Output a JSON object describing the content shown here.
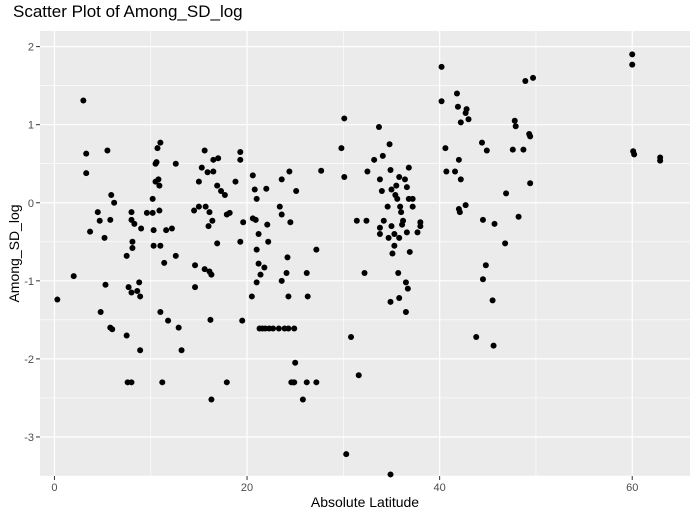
{
  "chart_data": {
    "type": "scatter",
    "title": "Scatter Plot of Among_SD_log",
    "xlabel": "Absolute Latitude",
    "ylabel": "Among_SD_log",
    "xlim": [
      -1.5,
      66
    ],
    "ylim": [
      -3.5,
      2.2
    ],
    "x_ticks": [
      0,
      20,
      40,
      60
    ],
    "y_ticks": [
      -3,
      -2,
      -1,
      0,
      1,
      2
    ],
    "grid": true,
    "legend": "none",
    "colors": {
      "panel": "#ebebeb",
      "grid": "#ffffff",
      "point": "#000000"
    },
    "points": [
      [
        0.3,
        -1.24
      ],
      [
        2,
        -0.94
      ],
      [
        3,
        1.31
      ],
      [
        3.3,
        0.63
      ],
      [
        3.3,
        0.38
      ],
      [
        3.7,
        -0.37
      ],
      [
        4.5,
        -0.12
      ],
      [
        4.7,
        -0.23
      ],
      [
        4.8,
        -1.4
      ],
      [
        5.2,
        -0.45
      ],
      [
        5.3,
        -1.05
      ],
      [
        5.5,
        0.67
      ],
      [
        5.8,
        -1.6
      ],
      [
        5.8,
        -0.22
      ],
      [
        5.9,
        0.1
      ],
      [
        6,
        -1.62
      ],
      [
        6.2,
        0
      ],
      [
        7.5,
        -0.68
      ],
      [
        7.5,
        -1.7
      ],
      [
        7.6,
        -2.3
      ],
      [
        7.7,
        -1.08
      ],
      [
        8,
        -2.3
      ],
      [
        8,
        -1.15
      ],
      [
        8,
        -0.22
      ],
      [
        8,
        -0.12
      ],
      [
        8.1,
        -0.5
      ],
      [
        8.1,
        -0.58
      ],
      [
        8.3,
        -0.27
      ],
      [
        8.6,
        -1.13
      ],
      [
        8.8,
        -1.02
      ],
      [
        8.9,
        -1.2
      ],
      [
        8.9,
        -1.89
      ],
      [
        9,
        -0.33
      ],
      [
        9.6,
        -0.13
      ],
      [
        10.2,
        -0.13
      ],
      [
        10.2,
        0.05
      ],
      [
        10.3,
        -0.55
      ],
      [
        10.3,
        -0.35
      ],
      [
        10.5,
        0.27
      ],
      [
        10.5,
        0.5
      ],
      [
        10.6,
        0.52
      ],
      [
        10.7,
        0.7
      ],
      [
        10.8,
        0.3
      ],
      [
        10.9,
        0.22
      ],
      [
        10.9,
        -0.1
      ],
      [
        11,
        0.77
      ],
      [
        11,
        -0.55
      ],
      [
        11,
        -1.4
      ],
      [
        11.2,
        -2.3
      ],
      [
        11.4,
        -0.77
      ],
      [
        11.6,
        -0.35
      ],
      [
        11.8,
        -1.51
      ],
      [
        12.2,
        -0.33
      ],
      [
        12.6,
        0.5
      ],
      [
        12.6,
        -0.68
      ],
      [
        12.9,
        -1.6
      ],
      [
        13.2,
        -1.89
      ],
      [
        14.5,
        -0.1
      ],
      [
        14.6,
        -1.08
      ],
      [
        14.6,
        -0.8
      ],
      [
        15,
        0.27
      ],
      [
        15,
        -0.05
      ],
      [
        15.3,
        0.45
      ],
      [
        15.6,
        -0.85
      ],
      [
        15.6,
        0.67
      ],
      [
        15.7,
        -0.05
      ],
      [
        15.9,
        0.39
      ],
      [
        16,
        -0.3
      ],
      [
        16.1,
        -0.88
      ],
      [
        16.1,
        -0.12
      ],
      [
        16.2,
        -1.5
      ],
      [
        16.3,
        -0.92
      ],
      [
        16.3,
        -2.52
      ],
      [
        16.4,
        -0.23
      ],
      [
        16.5,
        0.55
      ],
      [
        16.5,
        0.4
      ],
      [
        16.9,
        0.22
      ],
      [
        16.9,
        -0.52
      ],
      [
        17,
        0.57
      ],
      [
        17.3,
        0.15
      ],
      [
        17.7,
        0.1
      ],
      [
        17.9,
        -2.3
      ],
      [
        17.9,
        -0.15
      ],
      [
        18.2,
        -0.13
      ],
      [
        18.8,
        0.27
      ],
      [
        19.3,
        0.65
      ],
      [
        19.3,
        0.55
      ],
      [
        19.3,
        -0.5
      ],
      [
        19.5,
        -1.51
      ],
      [
        19.6,
        -0.25
      ],
      [
        20.5,
        -1.2
      ],
      [
        20.6,
        0.35
      ],
      [
        20.6,
        -0.2
      ],
      [
        20.8,
        0.17
      ],
      [
        20.9,
        -0.22
      ],
      [
        21,
        -1.02
      ],
      [
        21,
        0.05
      ],
      [
        21,
        -0.6
      ],
      [
        21.2,
        -0.78
      ],
      [
        21.2,
        -0.4
      ],
      [
        21.3,
        -1.61
      ],
      [
        21.4,
        -0.92
      ],
      [
        21.6,
        -1.61
      ],
      [
        21.8,
        -0.83
      ],
      [
        21.9,
        -1.61
      ],
      [
        22,
        0.18
      ],
      [
        22.1,
        -0.28
      ],
      [
        22.2,
        -0.5
      ],
      [
        22.3,
        -1.61
      ],
      [
        22.7,
        -1.61
      ],
      [
        23.3,
        -1.61
      ],
      [
        23.4,
        -0.05
      ],
      [
        23.6,
        -0.15
      ],
      [
        23.6,
        0.3
      ],
      [
        23.6,
        -1.0
      ],
      [
        23.9,
        -1.61
      ],
      [
        24.1,
        -0.9
      ],
      [
        24.2,
        -0.7
      ],
      [
        24.3,
        -1.2
      ],
      [
        24.3,
        -1.61
      ],
      [
        24.4,
        0.4
      ],
      [
        24.5,
        -0.25
      ],
      [
        24.6,
        -2.3
      ],
      [
        24.8,
        -2.3
      ],
      [
        24.9,
        -1.61
      ],
      [
        24.9,
        -2.3
      ],
      [
        25,
        -2.05
      ],
      [
        25.1,
        0.15
      ],
      [
        25.8,
        -2.52
      ],
      [
        26.2,
        -0.9
      ],
      [
        26.2,
        -2.3
      ],
      [
        26.3,
        -1.2
      ],
      [
        27.2,
        -0.6
      ],
      [
        27.2,
        -2.3
      ],
      [
        27.7,
        0.41
      ],
      [
        29.8,
        0.7
      ],
      [
        30.1,
        1.08
      ],
      [
        30.1,
        0.33
      ],
      [
        30.3,
        -3.22
      ],
      [
        30.8,
        -1.72
      ],
      [
        31.4,
        -0.23
      ],
      [
        31.6,
        -2.21
      ],
      [
        32.2,
        -0.9
      ],
      [
        32.4,
        -0.23
      ],
      [
        32.5,
        0.4
      ],
      [
        33.2,
        0.55
      ],
      [
        33.7,
        0.97
      ],
      [
        33.8,
        -0.32
      ],
      [
        33.8,
        -0.4
      ],
      [
        33.8,
        0.3
      ],
      [
        34,
        0.15
      ],
      [
        34.1,
        0.6
      ],
      [
        34.2,
        -0.23
      ],
      [
        34.6,
        -0.05
      ],
      [
        34.7,
        -0.45
      ],
      [
        34.8,
        0.75
      ],
      [
        34.9,
        0.42
      ],
      [
        34.9,
        -1.27
      ],
      [
        34.9,
        -3.48
      ],
      [
        35,
        0.17
      ],
      [
        35,
        -0.3
      ],
      [
        35.1,
        -0.65
      ],
      [
        35.3,
        -0.55
      ],
      [
        35.3,
        -0.4
      ],
      [
        35.4,
        0.1
      ],
      [
        35.5,
        0.22
      ],
      [
        35.6,
        0.05
      ],
      [
        35.7,
        -0.9
      ],
      [
        35.8,
        -0.45
      ],
      [
        35.8,
        0.33
      ],
      [
        35.8,
        -1.22
      ],
      [
        35.9,
        -0.05
      ],
      [
        36,
        -0.12
      ],
      [
        36.1,
        -0.28
      ],
      [
        36.2,
        -0.23
      ],
      [
        36.4,
        0.3
      ],
      [
        36.5,
        -1.4
      ],
      [
        36.5,
        -1.02
      ],
      [
        36.6,
        0.2
      ],
      [
        36.6,
        -0.38
      ],
      [
        36.7,
        -1.1
      ],
      [
        36.8,
        0.45
      ],
      [
        36.8,
        0.05
      ],
      [
        36.9,
        -0.63
      ],
      [
        37.2,
        0.05
      ],
      [
        37.2,
        -0.05
      ],
      [
        37.7,
        -0.38
      ],
      [
        38,
        -0.25
      ],
      [
        38,
        -0.3
      ],
      [
        40.2,
        1.74
      ],
      [
        40.2,
        1.3
      ],
      [
        40.6,
        0.7
      ],
      [
        40.7,
        0.4
      ],
      [
        41.6,
        0.4
      ],
      [
        41.8,
        1.4
      ],
      [
        41.9,
        1.23
      ],
      [
        42,
        -0.08
      ],
      [
        42,
        0.55
      ],
      [
        42.1,
        -0.12
      ],
      [
        42.2,
        1.03
      ],
      [
        42.2,
        0.3
      ],
      [
        42.7,
        -0.03
      ],
      [
        42.7,
        1.15
      ],
      [
        42.8,
        1.2
      ],
      [
        43,
        1.07
      ],
      [
        43.8,
        -1.72
      ],
      [
        44.4,
        0.77
      ],
      [
        44.5,
        -0.22
      ],
      [
        44.5,
        -0.98
      ],
      [
        44.8,
        -0.8
      ],
      [
        44.9,
        0.67
      ],
      [
        45.5,
        -1.25
      ],
      [
        45.6,
        -1.83
      ],
      [
        45.7,
        -0.27
      ],
      [
        46.8,
        -0.52
      ],
      [
        46.9,
        0.12
      ],
      [
        47.6,
        0.68
      ],
      [
        47.8,
        1.05
      ],
      [
        47.9,
        0.98
      ],
      [
        48.2,
        -0.18
      ],
      [
        48.7,
        0.68
      ],
      [
        48.9,
        1.56
      ],
      [
        49.3,
        0.88
      ],
      [
        49.4,
        0.85
      ],
      [
        49.4,
        0.25
      ],
      [
        49.7,
        1.6
      ],
      [
        60,
        1.9
      ],
      [
        60,
        1.77
      ],
      [
        60.1,
        0.66
      ],
      [
        60.2,
        0.62
      ],
      [
        62.9,
        0.58
      ],
      [
        62.9,
        0.54
      ]
    ]
  }
}
